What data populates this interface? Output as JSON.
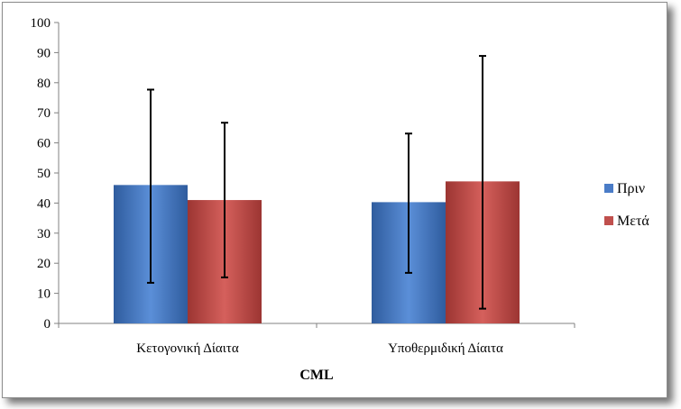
{
  "chart_data": {
    "type": "bar",
    "xlabel": "CML",
    "ylim": [
      0,
      100
    ],
    "yticks": [
      "0",
      "10",
      "20",
      "30",
      "40",
      "50",
      "60",
      "70",
      "80",
      "90",
      "100"
    ],
    "categories": [
      "Κετογονική Δίαιτα",
      "Υποθερμιδική Δίαιτα"
    ],
    "series": [
      {
        "name": "Πριν",
        "values": [
          46,
          40.3
        ],
        "error_low": [
          13.5,
          16.8
        ],
        "error_high": [
          77.7,
          63.1
        ],
        "color": "#4a7cc7"
      },
      {
        "name": "Μετά",
        "values": [
          41,
          47.2
        ],
        "error_low": [
          15.3,
          4.9
        ],
        "error_high": [
          66.7,
          88.9
        ],
        "color": "#c0504d"
      }
    ],
    "grid": false,
    "legend_position": "right"
  }
}
